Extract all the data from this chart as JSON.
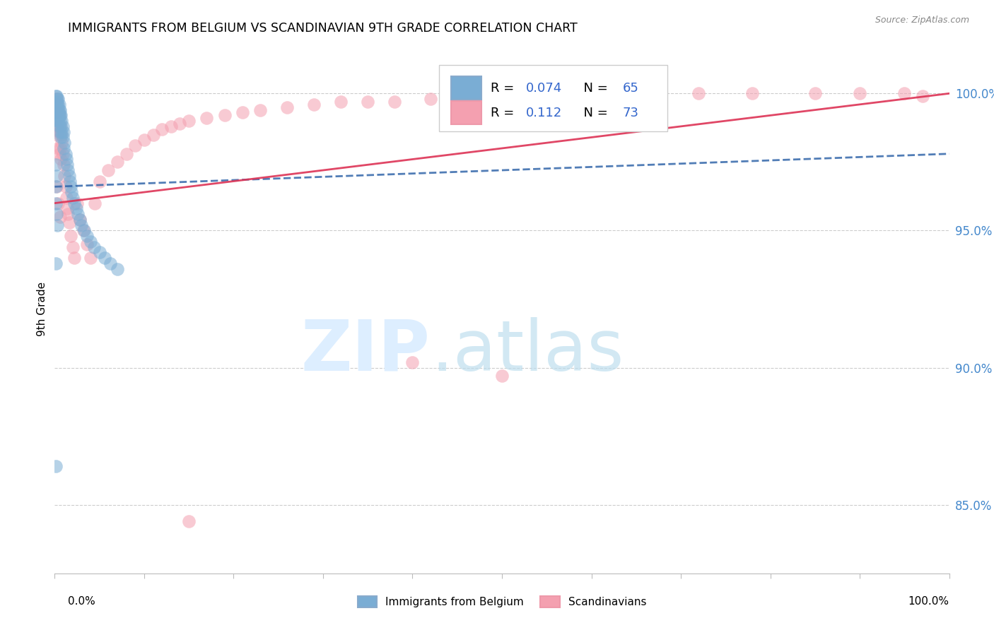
{
  "title": "IMMIGRANTS FROM BELGIUM VS SCANDINAVIAN 9TH GRADE CORRELATION CHART",
  "source": "Source: ZipAtlas.com",
  "ylabel": "9th Grade",
  "x_min": 0.0,
  "x_max": 1.0,
  "y_min": 0.825,
  "y_max": 1.018,
  "y_ticks": [
    0.85,
    0.9,
    0.95,
    1.0
  ],
  "y_tick_labels": [
    "85.0%",
    "90.0%",
    "95.0%",
    "100.0%"
  ],
  "color_blue": "#7AADD4",
  "color_pink": "#F4A0B0",
  "trend_blue_color": "#3366AA",
  "trend_pink_color": "#DD3355",
  "blue_trend": [
    0.966,
    0.978
  ],
  "pink_trend": [
    0.96,
    1.0
  ],
  "blue_x": [
    0.001,
    0.001,
    0.001,
    0.002,
    0.002,
    0.002,
    0.002,
    0.003,
    0.003,
    0.003,
    0.003,
    0.003,
    0.004,
    0.004,
    0.004,
    0.004,
    0.004,
    0.005,
    0.005,
    0.005,
    0.005,
    0.006,
    0.006,
    0.006,
    0.006,
    0.007,
    0.007,
    0.007,
    0.008,
    0.008,
    0.009,
    0.009,
    0.01,
    0.01,
    0.011,
    0.012,
    0.013,
    0.014,
    0.015,
    0.016,
    0.017,
    0.018,
    0.019,
    0.02,
    0.022,
    0.024,
    0.026,
    0.028,
    0.03,
    0.033,
    0.036,
    0.04,
    0.044,
    0.05,
    0.056,
    0.062,
    0.07,
    0.001,
    0.002,
    0.001,
    0.001,
    0.002,
    0.003,
    0.001,
    0.001
  ],
  "blue_y": [
    0.999,
    0.997,
    0.995,
    0.999,
    0.997,
    0.995,
    0.993,
    0.998,
    0.996,
    0.994,
    0.992,
    0.99,
    0.998,
    0.996,
    0.994,
    0.992,
    0.99,
    0.996,
    0.994,
    0.992,
    0.988,
    0.994,
    0.992,
    0.99,
    0.986,
    0.992,
    0.988,
    0.984,
    0.99,
    0.986,
    0.988,
    0.984,
    0.986,
    0.98,
    0.982,
    0.978,
    0.976,
    0.974,
    0.972,
    0.97,
    0.968,
    0.966,
    0.964,
    0.962,
    0.96,
    0.958,
    0.956,
    0.954,
    0.952,
    0.95,
    0.948,
    0.946,
    0.944,
    0.942,
    0.94,
    0.938,
    0.936,
    0.974,
    0.97,
    0.966,
    0.96,
    0.956,
    0.952,
    0.864,
    0.938
  ],
  "pink_x": [
    0.001,
    0.001,
    0.002,
    0.002,
    0.002,
    0.003,
    0.003,
    0.003,
    0.004,
    0.004,
    0.004,
    0.005,
    0.005,
    0.005,
    0.006,
    0.006,
    0.007,
    0.007,
    0.008,
    0.009,
    0.01,
    0.011,
    0.012,
    0.013,
    0.014,
    0.015,
    0.016,
    0.018,
    0.02,
    0.022,
    0.025,
    0.028,
    0.032,
    0.036,
    0.04,
    0.045,
    0.05,
    0.06,
    0.07,
    0.08,
    0.09,
    0.1,
    0.11,
    0.12,
    0.13,
    0.14,
    0.15,
    0.17,
    0.19,
    0.21,
    0.23,
    0.26,
    0.29,
    0.32,
    0.35,
    0.38,
    0.42,
    0.47,
    0.53,
    0.59,
    0.65,
    0.72,
    0.78,
    0.85,
    0.9,
    0.95,
    0.97,
    0.002,
    0.004,
    0.006,
    0.15,
    0.4,
    0.5
  ],
  "pink_y": [
    0.998,
    0.993,
    0.998,
    0.993,
    0.988,
    0.996,
    0.991,
    0.985,
    0.994,
    0.988,
    0.98,
    0.992,
    0.986,
    0.978,
    0.988,
    0.98,
    0.985,
    0.976,
    0.982,
    0.978,
    0.974,
    0.97,
    0.966,
    0.962,
    0.958,
    0.956,
    0.953,
    0.948,
    0.944,
    0.94,
    0.96,
    0.954,
    0.95,
    0.945,
    0.94,
    0.96,
    0.968,
    0.972,
    0.975,
    0.978,
    0.981,
    0.983,
    0.985,
    0.987,
    0.988,
    0.989,
    0.99,
    0.991,
    0.992,
    0.993,
    0.994,
    0.995,
    0.996,
    0.997,
    0.997,
    0.997,
    0.998,
    0.999,
    0.999,
    0.999,
    0.999,
    1.0,
    1.0,
    1.0,
    1.0,
    1.0,
    0.999,
    0.966,
    0.96,
    0.955,
    0.844,
    0.902,
    0.897
  ]
}
